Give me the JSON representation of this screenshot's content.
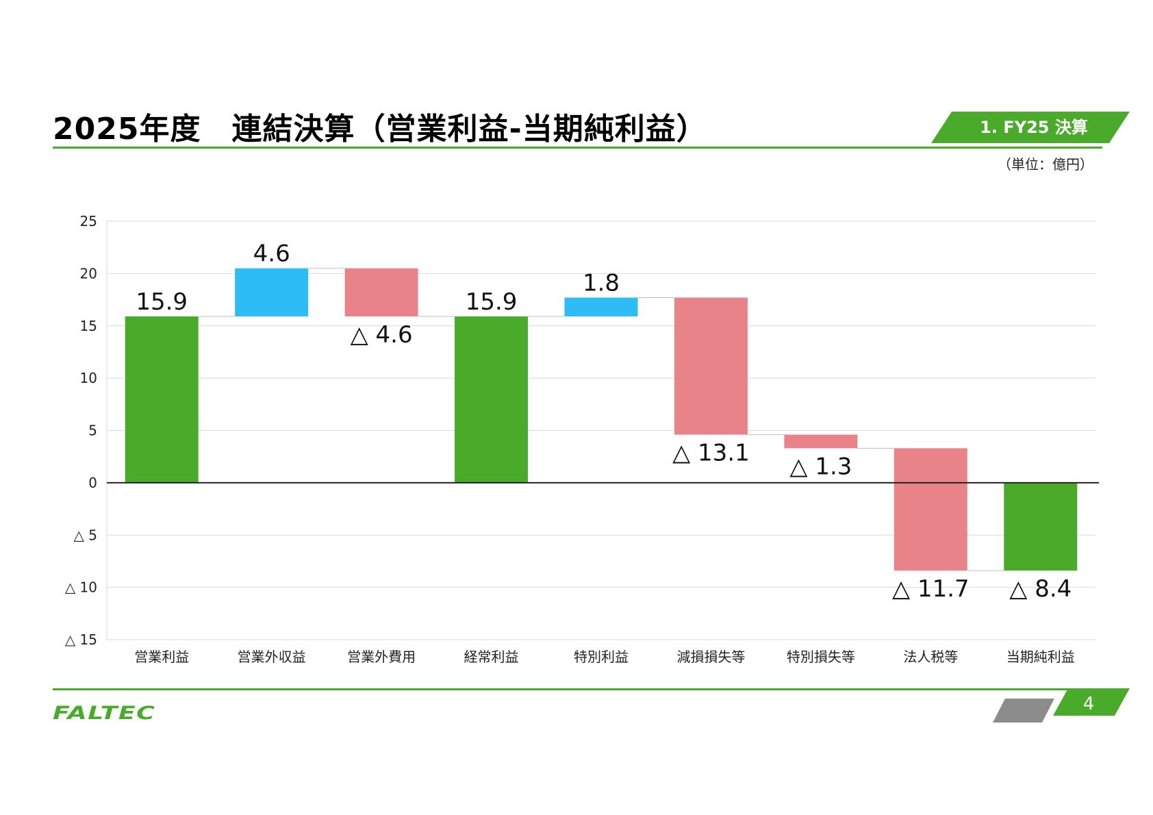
{
  "header": {
    "title": "2025年度　連結決算（営業利益-当期純利益）",
    "section": "1. FY25 決算",
    "unit": "（単位：億円）"
  },
  "footer": {
    "logo": "FALTEC",
    "page": "4"
  },
  "colors": {
    "accent": "#4aaa2a",
    "total": "#4aaa2a",
    "increase": "#2ebcf5",
    "decrease": "#e8838a",
    "page_shape_gray": "#8c8c8c"
  },
  "chart_data": {
    "type": "bar",
    "subtype": "waterfall",
    "categories": [
      "営業利益",
      "営業外収益",
      "営業外費用",
      "経常利益",
      "特別利益",
      "減損損失等",
      "特別損失等",
      "法人税等",
      "当期純利益"
    ],
    "values": [
      15.9,
      4.6,
      -4.6,
      15.9,
      1.8,
      -13.1,
      -1.3,
      -11.7,
      -8.4
    ],
    "kinds": [
      "total",
      "increase",
      "decrease",
      "total",
      "increase",
      "decrease",
      "decrease",
      "decrease",
      "total"
    ],
    "labels": [
      "15.9",
      "4.6",
      "△ 4.6",
      "15.9",
      "1.8",
      "△ 13.1",
      "△ 1.3",
      "△ 11.7",
      "△ 8.4"
    ],
    "yticks": [
      25,
      20,
      15,
      10,
      5,
      0,
      -5,
      -10,
      -15
    ],
    "ytick_labels": [
      "25",
      "20",
      "15",
      "10",
      "5",
      "0",
      "△ 5",
      "△ 10",
      "△ 15"
    ],
    "ylim": [
      -15,
      25
    ],
    "grid": true,
    "legend": "none"
  }
}
